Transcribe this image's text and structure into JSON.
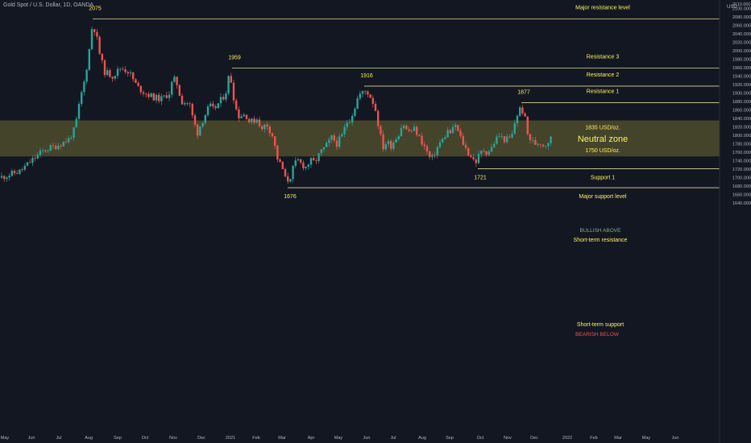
{
  "header": {
    "symbol": "Gold Spot / U.S. Dollar, 1D, OANDA",
    "currency": "USD"
  },
  "colors": {
    "up": "#26a69a",
    "down": "#ef5350",
    "level": "#fffbab",
    "zone_fill": "#6e6a33",
    "bg": "#131722",
    "text": "#fdf25c"
  },
  "chart_data": {
    "type": "candlestick",
    "title": "Gold Spot / U.S. Dollar, 1D, OANDA",
    "ylabel": "USD",
    "ylim": [
      1628,
      2112
    ],
    "yticks": [
      1640,
      1660,
      1680,
      1700,
      1720,
      1740,
      1760,
      1780,
      1800,
      1820,
      1840,
      1860,
      1880,
      1900,
      1920,
      1940,
      1960,
      1980,
      2000,
      2020,
      2040,
      2060,
      2080,
      2100
    ],
    "ytick_labels": [
      "1640.000",
      "1660.000",
      "1680.000",
      "1700.000",
      "1720.000",
      "1740.000",
      "1760.000",
      "1780.000",
      "1800.000",
      "1820.000",
      "1840.000",
      "1860.000",
      "1880.000",
      "1900.000",
      "1920.000",
      "1940.000",
      "1960.000",
      "1980.000",
      "2000.000",
      "2020.000",
      "2040.000",
      "2060.000",
      "2080.000",
      "2100.000"
    ],
    "top_label": "2110.000",
    "x_labels": [
      "May",
      "Jun",
      "Jul",
      "Aug",
      "Sep",
      "Oct",
      "Nov",
      "Dec",
      "2021",
      "Feb",
      "Mar",
      "Apr",
      "May",
      "Jun",
      "Jul",
      "Aug",
      "Sep",
      "Oct",
      "Nov",
      "Dec",
      "2022",
      "Feb",
      "Mar",
      "May",
      "Jun"
    ],
    "grid": false,
    "neutral_zone": {
      "label": "Neutral zone",
      "top": 1835,
      "bottom": 1750,
      "top_label": "1835 USD/oz.",
      "bottom_label": "1750 USD/oz."
    },
    "levels": [
      {
        "name": "Major resistance level",
        "value": 2075,
        "start_label": "2075"
      },
      {
        "name": "Resistance 3",
        "value": 1959,
        "start_label": "1959"
      },
      {
        "name": "Resistance 2",
        "value": 1916,
        "start_label": "1916"
      },
      {
        "name": "Resistance 1",
        "value": 1877,
        "start_label": "1877"
      },
      {
        "name": "Support 1",
        "value": 1721,
        "start_label": "1721"
      },
      {
        "name": "Major support level",
        "value": 1676,
        "start_label": "1676"
      }
    ],
    "annotations": {
      "bullish": "BULLISH ABOVE",
      "short_term_resistance": "Short-term resistance",
      "short_term_support": "Short-term support",
      "bearish": "BEARISH BELOW"
    },
    "price_path": [
      [
        0,
        1700
      ],
      [
        25,
        1715
      ],
      [
        42,
        1745
      ],
      [
        55,
        1765
      ],
      [
        70,
        1775
      ],
      [
        85,
        1790
      ],
      [
        93,
        1815
      ],
      [
        100,
        1890
      ],
      [
        105,
        1930
      ],
      [
        110,
        1990
      ],
      [
        115,
        2068
      ],
      [
        120,
        2030
      ],
      [
        125,
        1980
      ],
      [
        130,
        1950
      ],
      [
        140,
        1940
      ],
      [
        150,
        1960
      ],
      [
        160,
        1950
      ],
      [
        170,
        1915
      ],
      [
        180,
        1900
      ],
      [
        190,
        1890
      ],
      [
        200,
        1885
      ],
      [
        210,
        1900
      ],
      [
        215,
        1935
      ],
      [
        220,
        1920
      ],
      [
        225,
        1880
      ],
      [
        235,
        1875
      ],
      [
        240,
        1835
      ],
      [
        245,
        1805
      ],
      [
        250,
        1830
      ],
      [
        255,
        1850
      ],
      [
        260,
        1870
      ],
      [
        265,
        1860
      ],
      [
        275,
        1885
      ],
      [
        280,
        1900
      ],
      [
        285,
        1950
      ],
      [
        290,
        1890
      ],
      [
        295,
        1845
      ],
      [
        305,
        1850
      ],
      [
        310,
        1830
      ],
      [
        320,
        1840
      ],
      [
        325,
        1810
      ],
      [
        330,
        1830
      ],
      [
        338,
        1800
      ],
      [
        345,
        1740
      ],
      [
        350,
        1725
      ],
      [
        355,
        1690
      ],
      [
        360,
        1700
      ],
      [
        365,
        1730
      ],
      [
        370,
        1740
      ],
      [
        375,
        1730
      ],
      [
        380,
        1725
      ],
      [
        385,
        1740
      ],
      [
        390,
        1735
      ],
      [
        398,
        1760
      ],
      [
        405,
        1775
      ],
      [
        412,
        1795
      ],
      [
        418,
        1780
      ],
      [
        425,
        1800
      ],
      [
        430,
        1830
      ],
      [
        435,
        1840
      ],
      [
        440,
        1865
      ],
      [
        445,
        1895
      ],
      [
        450,
        1900
      ],
      [
        455,
        1905
      ],
      [
        460,
        1890
      ],
      [
        465,
        1870
      ],
      [
        470,
        1820
      ],
      [
        475,
        1770
      ],
      [
        480,
        1785
      ],
      [
        485,
        1775
      ],
      [
        490,
        1790
      ],
      [
        495,
        1805
      ],
      [
        500,
        1830
      ],
      [
        505,
        1810
      ],
      [
        510,
        1810
      ],
      [
        515,
        1815
      ],
      [
        520,
        1795
      ],
      [
        525,
        1780
      ],
      [
        530,
        1760
      ],
      [
        535,
        1740
      ],
      [
        540,
        1760
      ],
      [
        545,
        1780
      ],
      [
        550,
        1790
      ],
      [
        555,
        1810
      ],
      [
        560,
        1805
      ],
      [
        565,
        1825
      ],
      [
        570,
        1800
      ],
      [
        575,
        1780
      ],
      [
        580,
        1760
      ],
      [
        585,
        1750
      ],
      [
        590,
        1735
      ],
      [
        595,
        1755
      ],
      [
        600,
        1765
      ],
      [
        605,
        1760
      ],
      [
        610,
        1770
      ],
      [
        615,
        1790
      ],
      [
        620,
        1800
      ],
      [
        625,
        1790
      ],
      [
        630,
        1790
      ],
      [
        635,
        1795
      ],
      [
        640,
        1840
      ],
      [
        645,
        1862
      ],
      [
        650,
        1855
      ],
      [
        655,
        1800
      ],
      [
        660,
        1785
      ],
      [
        665,
        1780
      ],
      [
        670,
        1785
      ],
      [
        675,
        1775
      ],
      [
        680,
        1785
      ],
      [
        685,
        1795
      ]
    ]
  }
}
